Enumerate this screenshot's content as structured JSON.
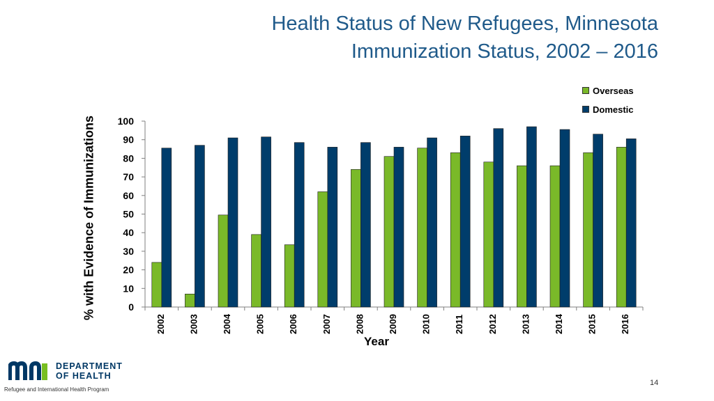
{
  "header": {
    "title_line1": "Health Status of New Refugees, Minnesota",
    "title_line2": "Immunization Status, 2002 – 2016"
  },
  "colors": {
    "overseas": "#7ab929",
    "domestic": "#003d6b",
    "title": "#1f5a8a",
    "logo": "#003865"
  },
  "chart_data": {
    "type": "bar",
    "title": "Immunization Status, 2002 – 2016",
    "xlabel": "Year",
    "ylabel": "% with Evidence of Immunizations",
    "ylim": [
      0,
      100
    ],
    "yticks": [
      0,
      10,
      20,
      30,
      40,
      50,
      60,
      70,
      80,
      90,
      100
    ],
    "categories": [
      "2002",
      "2003",
      "2004",
      "2005",
      "2006",
      "2007",
      "2008",
      "2009",
      "2010",
      "2011",
      "2012",
      "2013",
      "2014",
      "2015",
      "2016"
    ],
    "series": [
      {
        "name": "Overseas",
        "values": [
          24,
          7,
          49.5,
          39,
          33.5,
          62,
          74,
          81,
          85.5,
          83,
          78,
          76,
          76,
          83,
          86
        ]
      },
      {
        "name": "Domestic",
        "values": [
          85.5,
          87,
          91,
          91.5,
          88.5,
          86,
          88.5,
          86,
          91,
          92,
          96,
          97,
          95.5,
          93,
          90.5
        ]
      }
    ],
    "legend": "top-right",
    "grid": false
  },
  "footer": {
    "department_line1": "DEPARTMENT",
    "department_line2": "OF HEALTH",
    "logo_mark": "mn",
    "program": "Refugee and International Health Program",
    "page_number": "14"
  }
}
